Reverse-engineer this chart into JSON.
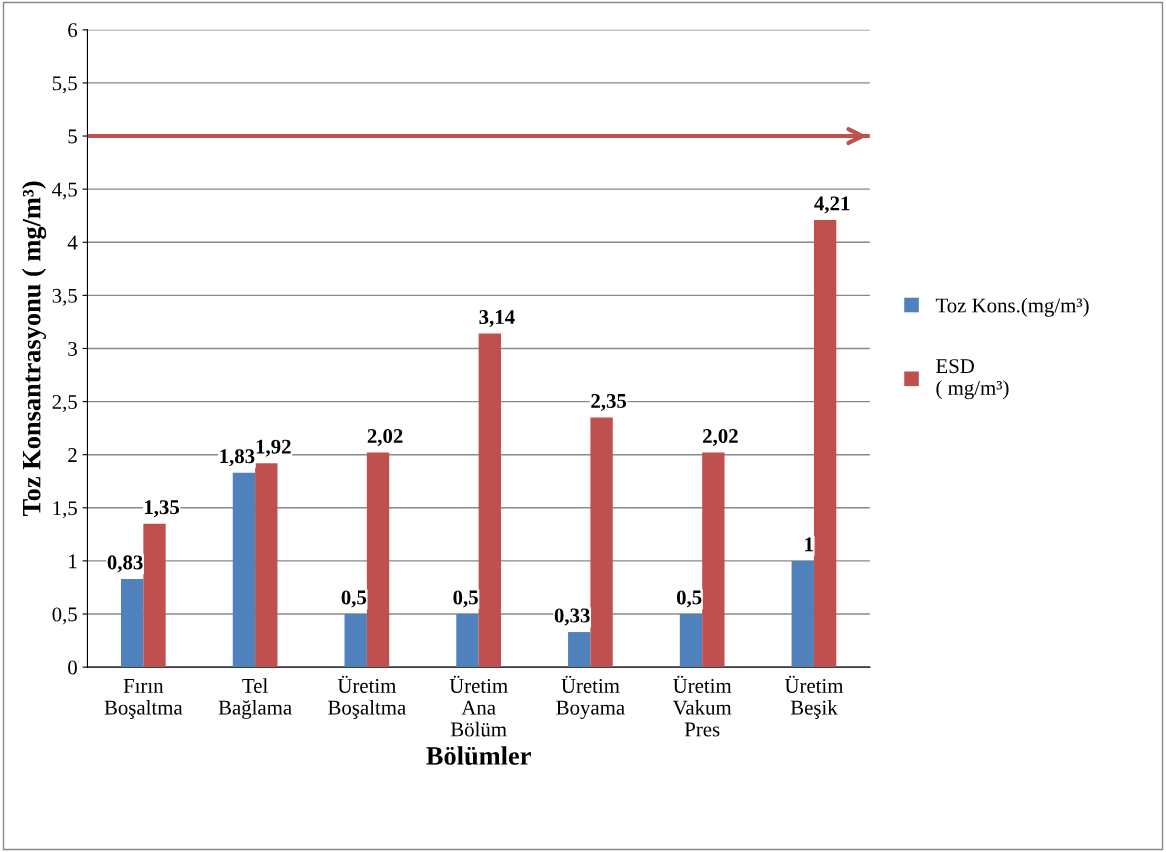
{
  "chart_data": {
    "type": "bar",
    "xlabel": "Bölümler",
    "ylabel": "Toz Konsantrasyonu ( mg/m³)",
    "categories": [
      "Fırın\nBoşaltma",
      "Tel\nBağlama",
      "Üretim\nBoşaltma",
      "Üretim\nAna\nBölüm",
      "Üretim\nBoyama",
      "Üretim\nVakum\nPres",
      "Üretim\nBeşik"
    ],
    "series": [
      {
        "name": "Toz Kons.(mg/m³)",
        "color": "#4f81bd",
        "values": [
          0.83,
          1.83,
          0.5,
          0.5,
          0.33,
          0.5,
          1
        ],
        "value_labels": [
          "0,83",
          "1,83",
          "0,5",
          "0,5",
          "0,33",
          "0,5",
          "1"
        ]
      },
      {
        "name": "ESD\n( mg/m³)",
        "color": "#c0504d",
        "values": [
          1.35,
          1.92,
          2.02,
          3.14,
          2.35,
          2.02,
          4.21
        ],
        "value_labels": [
          "1,35",
          "1,92",
          "2,02",
          "3,14",
          "2,35",
          "2,02",
          "4,21"
        ]
      }
    ],
    "ylim": [
      0,
      6
    ],
    "yticks": [
      0,
      {
        "value": 0.5,
        "label": "0,5"
      },
      1,
      {
        "value": 1.5,
        "label": "1,5"
      },
      2,
      {
        "value": 2.5,
        "label": "2,5"
      },
      3,
      {
        "value": 3.5,
        "label": "3,5"
      },
      4,
      {
        "value": 4.5,
        "label": "4,5"
      },
      5,
      {
        "value": 5.5,
        "label": "5,5"
      },
      6
    ],
    "ref_lines": [
      {
        "axis": "y",
        "value": 5,
        "color": "#c0504d",
        "line_style": "solid"
      }
    ],
    "grid": "y",
    "legend": "right"
  }
}
